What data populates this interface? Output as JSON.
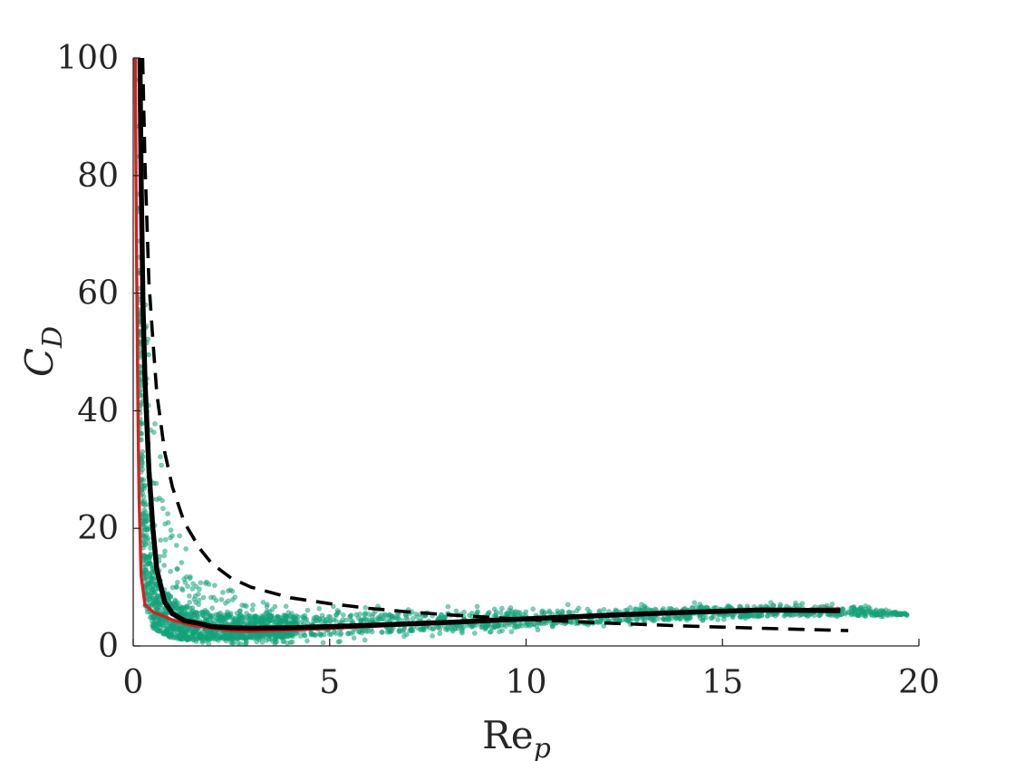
{
  "chart_data": {
    "type": "scatter",
    "title": "",
    "xlabel": {
      "base": "Re",
      "subscript": "p"
    },
    "ylabel": {
      "base": "C",
      "subscript": "D"
    },
    "xlim": [
      0,
      20
    ],
    "ylim": [
      0,
      100
    ],
    "xticks": [
      0,
      5,
      10,
      15,
      20
    ],
    "yticks": [
      0,
      20,
      40,
      60,
      80,
      100
    ],
    "xtick_labels": [
      "0",
      "5",
      "10",
      "15",
      "20"
    ],
    "ytick_labels": [
      "0",
      "20",
      "40",
      "60",
      "80",
      "100"
    ],
    "grid": false,
    "legend": "none",
    "colors": {
      "scatter": "#14a37a",
      "mean_curve": "#000000",
      "fit_curve": "#d62020",
      "reference_curve": "#000000",
      "axis": "#262626"
    },
    "scatter_band": {
      "description_points": "upper/lower envelope of the green point cloud",
      "x": [
        0.15,
        0.2,
        0.3,
        0.5,
        0.8,
        1.0,
        1.5,
        2.0,
        3.0,
        4.0,
        5.0,
        7.0,
        10.0,
        12.5,
        15.0,
        17.0,
        18.5,
        19.7
      ],
      "upper": [
        100,
        80,
        60,
        40,
        28,
        22,
        15,
        11,
        8,
        7,
        6.8,
        6.8,
        7.2,
        7.3,
        7.5,
        7.6,
        7.0,
        5.5
      ],
      "lower": [
        38,
        22,
        12,
        5,
        2.5,
        1.5,
        0.5,
        0.3,
        0.3,
        0.4,
        0.6,
        1.5,
        2.5,
        3.5,
        4.5,
        5.0,
        5.0,
        5.0
      ],
      "dense_upper": [
        60,
        40,
        24,
        14,
        10,
        8,
        6.5,
        5.8,
        5.3,
        5.2,
        5.3,
        5.6,
        6.0,
        6.3,
        6.7,
        6.9,
        6.6,
        5.5
      ],
      "dense_lower": [
        55,
        20,
        7,
        3,
        1.8,
        1.3,
        1.0,
        1.1,
        1.3,
        1.6,
        1.9,
        2.5,
        3.4,
        4.1,
        4.8,
        5.2,
        5.2,
        5.2
      ]
    },
    "series": [
      {
        "name": "",
        "style": "solid-thick",
        "color": "#000000",
        "x": [
          0.17,
          0.2,
          0.25,
          0.3,
          0.4,
          0.5,
          0.6,
          0.8,
          1.0,
          1.3,
          1.7,
          2.0,
          2.5,
          3.0,
          4.0,
          5.0,
          6.0,
          8.0,
          10.0,
          12.0,
          14.0,
          16.0,
          18.0
        ],
        "y": [
          100,
          80,
          58,
          45,
          30,
          20,
          13,
          7.5,
          5.5,
          4.3,
          3.8,
          3.3,
          3.1,
          3.0,
          3.1,
          3.3,
          3.5,
          4.0,
          4.6,
          5.2,
          5.7,
          6.1,
          6.0
        ]
      },
      {
        "name": "",
        "style": "solid",
        "color": "#d62020",
        "x": [
          0.05,
          0.08,
          0.1,
          0.12,
          0.15,
          0.2,
          0.3,
          0.5,
          0.8,
          1.0,
          1.5,
          2.0,
          2.5,
          3.0,
          4.0,
          5.0,
          6.0,
          8.0,
          10.0,
          12.0,
          14.0,
          16.0,
          18.0
        ],
        "y": [
          100,
          70,
          55,
          40,
          25,
          12,
          7,
          5.8,
          5.0,
          4.4,
          3.5,
          3.0,
          2.6,
          2.5,
          2.7,
          3.0,
          3.3,
          3.9,
          4.5,
          5.1,
          5.6,
          6.1,
          6.3
        ]
      },
      {
        "name": "",
        "style": "dashed",
        "color": "#000000",
        "x": [
          0.24,
          0.3,
          0.4,
          0.5,
          0.6,
          0.8,
          1.0,
          1.3,
          1.7,
          2.0,
          2.5,
          3.0,
          4.0,
          5.0,
          6.0,
          7.0,
          8.0,
          9.0,
          10.0,
          12.0,
          14.0,
          16.0,
          18.2
        ],
        "y": [
          100,
          82,
          62,
          52,
          43,
          33,
          27,
          21,
          16.5,
          14,
          11.5,
          10,
          8.2,
          7.2,
          6.4,
          5.8,
          5.3,
          4.9,
          4.5,
          3.9,
          3.4,
          3.0,
          2.6
        ]
      }
    ]
  }
}
